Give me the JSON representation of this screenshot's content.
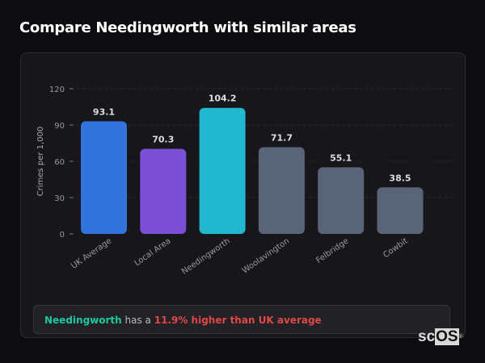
{
  "title": "Compare Needingworth with similar areas",
  "chart_data": {
    "type": "bar",
    "categories": [
      "UK Average",
      "Local Area",
      "Needingworth",
      "Woolavington",
      "Felbridge",
      "Cowbit"
    ],
    "values": [
      93.1,
      70.3,
      104.2,
      71.7,
      55.1,
      38.5
    ],
    "colors": [
      "#3273dc",
      "#7b4fd6",
      "#22b8cf",
      "#5a6478",
      "#5a6478",
      "#5a6478"
    ],
    "ylabel": "Crimes per 1,000",
    "ylim": [
      0,
      120
    ],
    "yticks": [
      0,
      30,
      60,
      90,
      120
    ],
    "grid": true,
    "data_labels": true
  },
  "summary": {
    "area": "Needingworth",
    "middle": "has a",
    "comparison": "11.9% higher than UK average"
  },
  "logo": {
    "text1": "sc",
    "text2": "OS",
    "mark": "®"
  }
}
